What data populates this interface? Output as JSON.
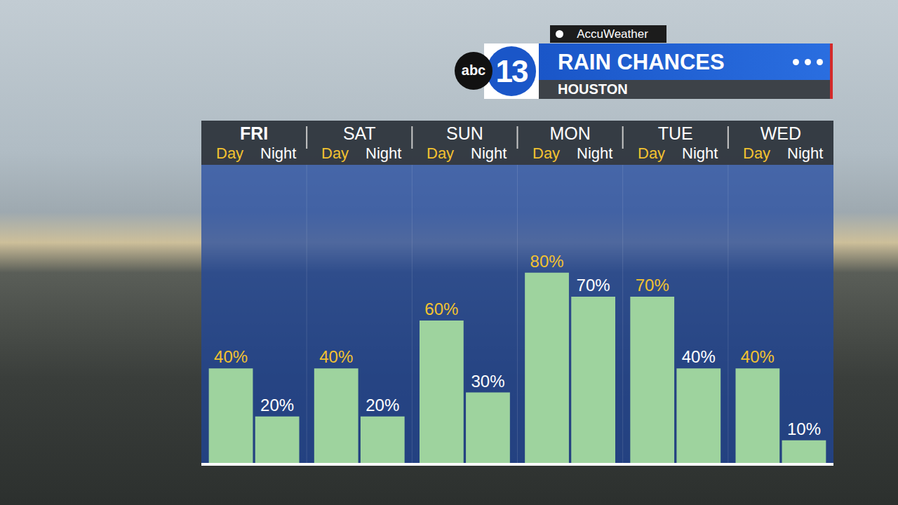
{
  "chart_data": {
    "type": "bar",
    "title": "RAIN CHANCES",
    "subtitle": "HOUSTON",
    "annotations": [
      "AccuWeather",
      "abc",
      "13"
    ],
    "categories": [
      "FRI",
      "SAT",
      "SUN",
      "MON",
      "TUE",
      "WED"
    ],
    "series": [
      {
        "name": "Day",
        "color": "#9ed39e",
        "values": [
          40,
          40,
          60,
          80,
          70,
          40
        ],
        "value_labels": [
          "40%",
          "40%",
          "60%",
          "80%",
          "70%",
          "40%"
        ]
      },
      {
        "name": "Night",
        "color": "#9ed39e",
        "values": [
          20,
          20,
          30,
          70,
          40,
          10
        ],
        "value_labels": [
          "20%",
          "20%",
          "30%",
          "70%",
          "40%",
          "10%"
        ]
      }
    ],
    "ylim": [
      0,
      125
    ],
    "tick_labels": "x",
    "data_labels": true,
    "grid": false
  }
}
